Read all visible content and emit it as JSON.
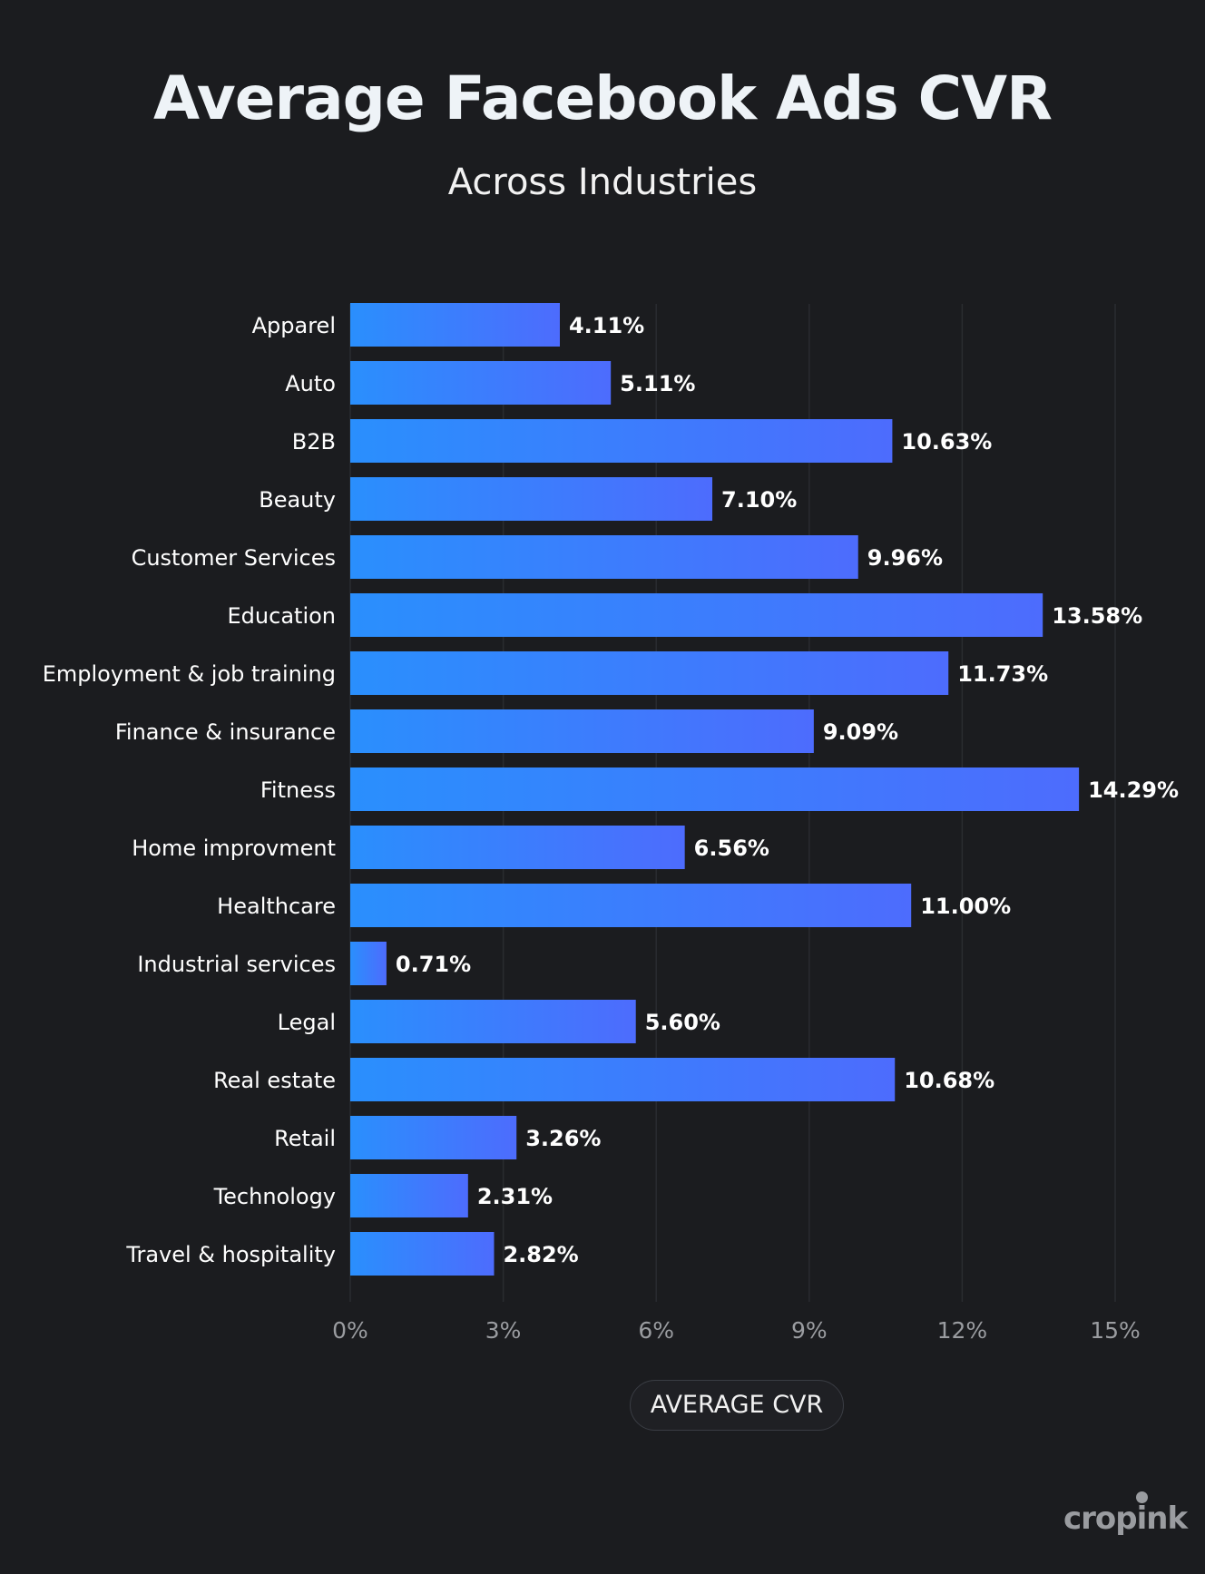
{
  "header": {
    "title": "Average Facebook Ads CVR",
    "subtitle": "Across Industries"
  },
  "legend": {
    "label": "AVERAGE CVR"
  },
  "brand": {
    "logo_text": "cropink"
  },
  "colors": {
    "background": "#1b1c1f",
    "bar_start": "#2a8ffd",
    "bar_end": "#4d6cfd",
    "grid": "#2a2c30",
    "tick_label": "#9a9ca0",
    "category_label": "#ffffff",
    "value_label": "#ffffff"
  },
  "chart_data": {
    "type": "bar",
    "orientation": "horizontal",
    "title": "Average Facebook Ads CVR",
    "subtitle": "Across Industries",
    "xlabel": "",
    "ylabel": "",
    "xlim": [
      0,
      15
    ],
    "x_ticks": [
      0,
      3,
      6,
      9,
      12,
      15
    ],
    "x_tick_labels": [
      "0%",
      "3%",
      "6%",
      "9%",
      "12%",
      "15%"
    ],
    "grid": true,
    "legend": "bottom-center",
    "categories": [
      "Apparel",
      "Auto",
      "B2B",
      "Beauty",
      "Customer Services",
      "Education",
      "Employment & job training",
      "Finance & insurance",
      "Fitness",
      "Home improvment",
      "Healthcare",
      "Industrial services",
      "Legal",
      "Real estate",
      "Retail",
      "Technology",
      "Travel & hospitality"
    ],
    "series": [
      {
        "name": "AVERAGE CVR",
        "values": [
          4.11,
          5.11,
          10.63,
          7.1,
          9.96,
          13.58,
          11.73,
          9.09,
          14.29,
          6.56,
          11.0,
          0.71,
          5.6,
          10.68,
          3.26,
          2.31,
          2.82
        ],
        "labels": [
          "4.11%",
          "5.11%",
          "10.63%",
          "7.10%",
          "9.96%",
          "13.58%",
          "11.73%",
          "9.09%",
          "14.29%",
          "6.56%",
          "11.00%",
          "0.71%",
          "5.60%",
          "10.68%",
          "3.26%",
          "2.31%",
          "2.82%"
        ]
      }
    ]
  }
}
